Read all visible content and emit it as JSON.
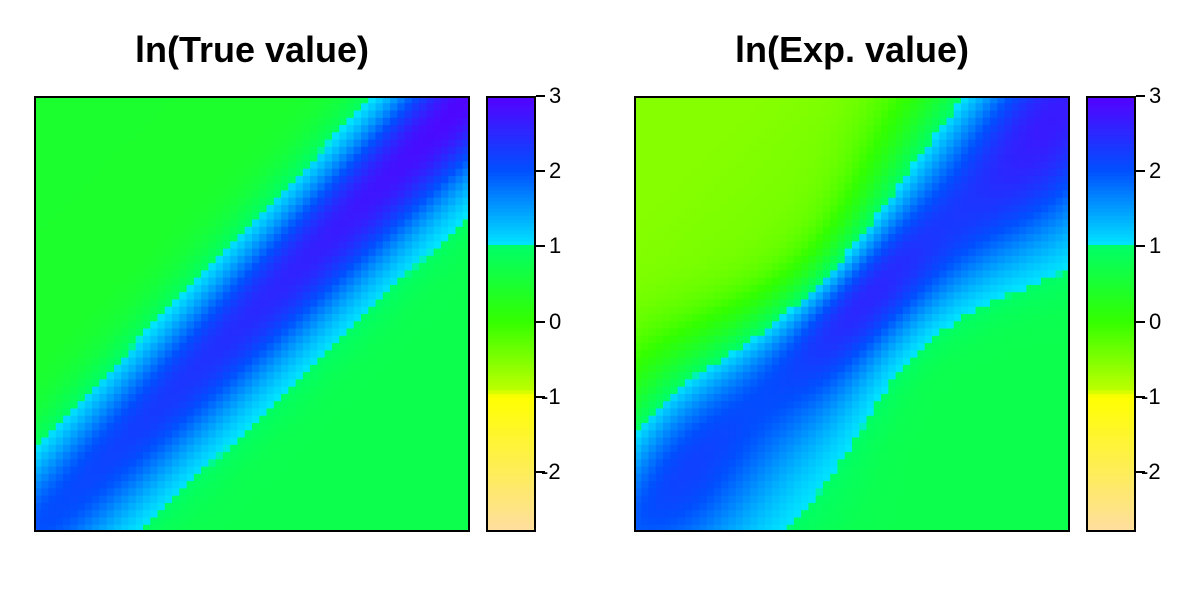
{
  "chart_data": [
    {
      "type": "heatmap",
      "title": "ln(True value)",
      "xlabel": "",
      "ylabel": "",
      "legend_position": "right",
      "zlim": [
        -2.8,
        3.0
      ],
      "colorbar_ticks": [
        3,
        2,
        1,
        0,
        -1,
        -2
      ],
      "colorbar_tick_labels": [
        "3",
        "2",
        "1",
        "0",
        "-1",
        "-2"
      ],
      "colorbar_stops": [
        {
          "value": -2.8,
          "color": "#FFDEA0"
        },
        {
          "value": -1.0,
          "color": "#FFFF00"
        },
        {
          "value": -0.9,
          "color": "#BBFF00"
        },
        {
          "value": 0.0,
          "color": "#33FF00"
        },
        {
          "value": 1.0,
          "color": "#00FF66"
        },
        {
          "value": 1.01,
          "color": "#00E5FF"
        },
        {
          "value": 2.0,
          "color": "#0050FF"
        },
        {
          "value": 3.0,
          "color": "#5500FF"
        }
      ],
      "surface": {
        "left_corner": 0.45,
        "right_corner": 0.75,
        "peak_low": 2.0,
        "peak_high": 2.95,
        "band_width": 0.24,
        "noise": 0.0
      }
    },
    {
      "type": "heatmap",
      "title": "ln(Exp. value)",
      "xlabel": "",
      "ylabel": "",
      "legend_position": "right",
      "zlim": [
        -2.8,
        3.0
      ],
      "colorbar_ticks": [
        3,
        2,
        1,
        0,
        -1,
        -2
      ],
      "colorbar_tick_labels": [
        "3",
        "2",
        "1",
        "0",
        "-1",
        "-2"
      ],
      "colorbar_stops": [
        {
          "value": -2.8,
          "color": "#FFDEA0"
        },
        {
          "value": -1.0,
          "color": "#FFFF00"
        },
        {
          "value": -0.9,
          "color": "#BBFF00"
        },
        {
          "value": 0.0,
          "color": "#33FF00"
        },
        {
          "value": 1.0,
          "color": "#00FF66"
        },
        {
          "value": 1.01,
          "color": "#00E5FF"
        },
        {
          "value": 2.0,
          "color": "#0050FF"
        },
        {
          "value": 3.0,
          "color": "#5500FF"
        }
      ],
      "surface": {
        "left_corner": -0.55,
        "right_corner": 0.75,
        "peak_low": 1.9,
        "peak_high": 2.6,
        "band_width": 0.3,
        "noise": 0.25
      }
    }
  ]
}
